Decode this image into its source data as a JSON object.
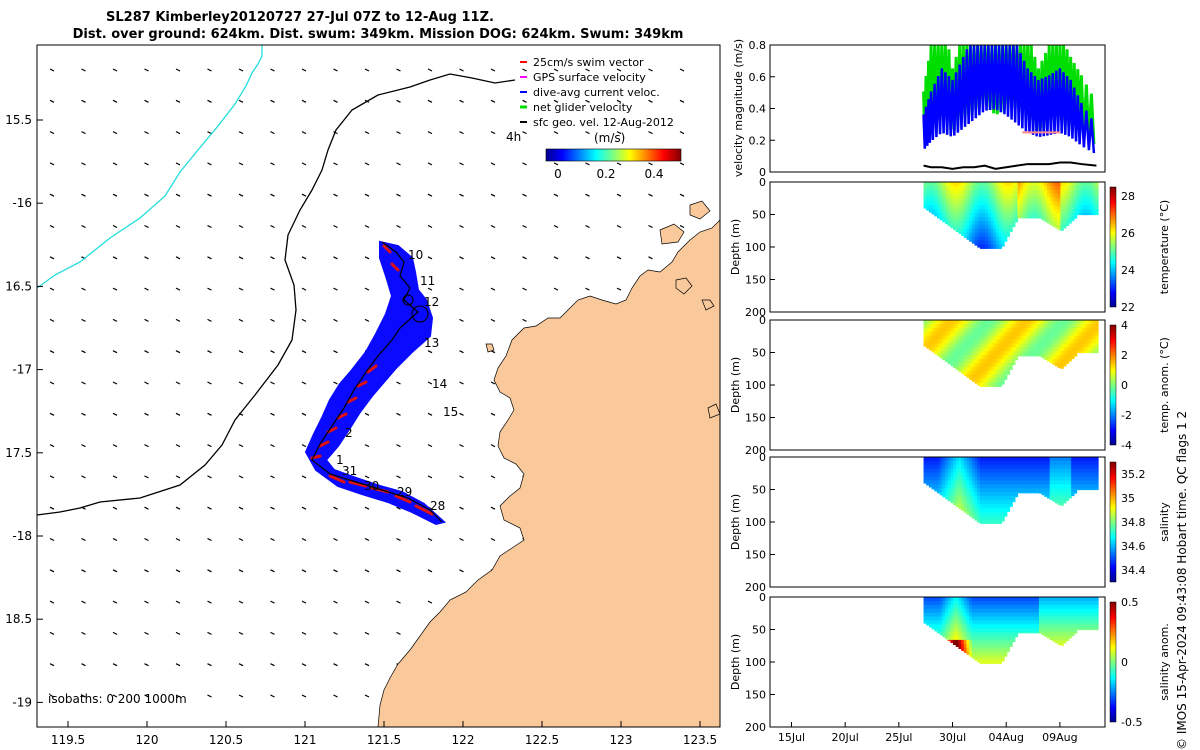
{
  "figure": {
    "title_line1": "SL287 Kimberley20120727 27-Jul 07Z to 12-Aug 11Z.",
    "title_line2": "Dist. over ground: 624km. Dist. swum: 349km. Mission DOG: 624km. Swum: 349km",
    "credit": "© IMOS 15-Apr-2024 09:43:08 Hobart time. QC flags 1  2"
  },
  "map": {
    "lon_ticks": [
      "119.5",
      "120",
      "120.5",
      "121",
      "121.5",
      "122",
      "122.5",
      "123",
      "123.5"
    ],
    "lat_ticks": [
      "15.5",
      "-16",
      "16.5",
      "-17",
      "17.5",
      "-18",
      "18.5",
      "-19"
    ],
    "legend": [
      {
        "label": "25cm/s swim vector",
        "color": "#ff0000"
      },
      {
        "label": "GPS surface velocity",
        "color": "#ff00ff"
      },
      {
        "label": "dive-avg current veloc.",
        "color": "#0000ff"
      },
      {
        "label": "net glider velocity",
        "color": "#00dd00"
      },
      {
        "label": "sfc geo. vel. 12-Aug-2012",
        "color": "#000000"
      }
    ],
    "time_step_label": "4h",
    "colorbar": {
      "unit": "(m/s)",
      "ticks": [
        "0",
        "0.2",
        "0.4"
      ]
    },
    "isobaths_label": "isobaths: 0   200  1000m",
    "day_labels": [
      "10",
      "11",
      "12",
      "13",
      "14",
      "15",
      "1",
      "2",
      "31",
      "30",
      "29",
      "28"
    ],
    "colors": {
      "land": "#f9c89b",
      "track_blue": "#0a0aff",
      "swim_red": "#dd1111",
      "coast": "#000000",
      "isobath": "#22dddd"
    }
  },
  "chart_data": [
    {
      "type": "line",
      "title": "",
      "ylabel": "velocity magnitude (m/s)",
      "ylim": [
        0,
        0.8
      ],
      "yticks": [
        "0",
        "0.2",
        "0.4",
        "0.6",
        "0.8"
      ],
      "series": [
        {
          "name": "net glider velocity",
          "color": "#00dd00",
          "x": [
            27.3,
            28,
            29,
            30,
            31,
            32,
            33,
            34,
            35,
            36,
            37,
            38,
            39,
            40,
            41,
            42,
            43.4
          ],
          "values": [
            0.35,
            0.55,
            0.7,
            0.45,
            0.6,
            0.7,
            0.78,
            0.65,
            0.72,
            0.75,
            0.6,
            0.45,
            0.55,
            0.6,
            0.5,
            0.42,
            0.3
          ]
        },
        {
          "name": "dive-avg current veloc.",
          "color": "#0000ff",
          "x": [
            27.3,
            28,
            29,
            30,
            31,
            32,
            33,
            34,
            35,
            36,
            37,
            38,
            39,
            40,
            41,
            42,
            43.4
          ],
          "values": [
            0.25,
            0.35,
            0.45,
            0.4,
            0.5,
            0.6,
            0.7,
            0.72,
            0.65,
            0.55,
            0.45,
            0.4,
            0.42,
            0.45,
            0.4,
            0.3,
            0.2
          ]
        },
        {
          "name": "sfc geo. vel.",
          "color": "#000000",
          "x": [
            27.3,
            28,
            29,
            30,
            31,
            32,
            33,
            34,
            35,
            36,
            37,
            38,
            39,
            40,
            41,
            42,
            43.4
          ],
          "values": [
            0.04,
            0.03,
            0.03,
            0.02,
            0.03,
            0.03,
            0.04,
            0.02,
            0.03,
            0.04,
            0.05,
            0.05,
            0.05,
            0.06,
            0.06,
            0.05,
            0.04
          ]
        },
        {
          "name": "GPS surface velocity",
          "color": "#ff8888",
          "x": [
            36.5,
            37,
            38,
            39,
            40
          ],
          "values": [
            0.25,
            0.25,
            0.25,
            0.25,
            0.25
          ]
        }
      ]
    },
    {
      "type": "heatmap",
      "ylabel": "Depth (m)",
      "clabel": "temperature (°C)",
      "ylim": [
        0,
        200
      ],
      "yticks": [
        "0",
        "50",
        "100",
        "150",
        "200"
      ],
      "cticks": [
        "28",
        "26",
        "24",
        "22"
      ],
      "crange": [
        22,
        28.5
      ]
    },
    {
      "type": "heatmap",
      "ylabel": "Depth (m)",
      "clabel": "temp. anom. (°C)",
      "ylim": [
        0,
        200
      ],
      "yticks": [
        "0",
        "50",
        "100",
        "150",
        "200"
      ],
      "cticks": [
        "4",
        "2",
        "0",
        "-2",
        "-4"
      ],
      "crange": [
        -4,
        4
      ]
    },
    {
      "type": "heatmap",
      "ylabel": "Depth (m)",
      "clabel": "salinity",
      "ylim": [
        0,
        200
      ],
      "yticks": [
        "0",
        "50",
        "100",
        "150",
        "200"
      ],
      "cticks": [
        "35.2",
        "35",
        "34.8",
        "34.6",
        "34.4"
      ],
      "crange": [
        34.3,
        35.3
      ]
    },
    {
      "type": "heatmap",
      "ylabel": "Depth (m)",
      "clabel": "salinity anom.",
      "ylim": [
        0,
        200
      ],
      "yticks": [
        "0",
        "50",
        "100",
        "150",
        "200"
      ],
      "cticks": [
        "0.5",
        "0",
        "-0.5"
      ],
      "crange": [
        -0.5,
        0.5
      ],
      "xticks": [
        "15Jul",
        "20Jul",
        "25Jul",
        "30Jul",
        "04Aug",
        "09Aug"
      ]
    }
  ]
}
